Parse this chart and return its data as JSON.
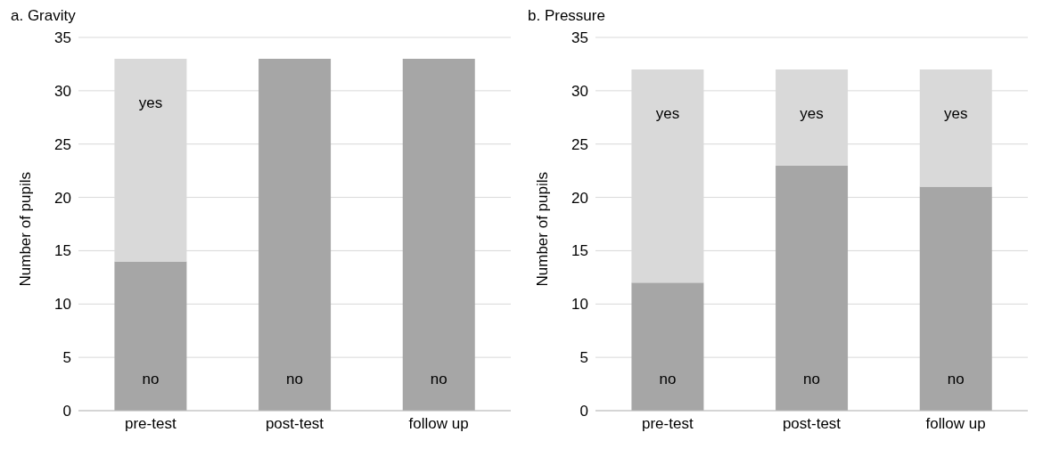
{
  "chart_data": [
    {
      "type": "bar",
      "title": "a. Gravity",
      "ylabel": "Number of pupils",
      "categories": [
        "pre-test",
        "post-test",
        "follow up"
      ],
      "stacked": true,
      "ylim": [
        0,
        35
      ],
      "yticks": [
        0,
        5,
        10,
        15,
        20,
        25,
        30,
        35
      ],
      "grid": "y",
      "series": [
        {
          "name": "no",
          "color": "#a6a6a6",
          "values": [
            14,
            33,
            33
          ]
        },
        {
          "name": "yes",
          "color": "#d9d9d9",
          "values": [
            19,
            0,
            0
          ]
        }
      ]
    },
    {
      "type": "bar",
      "title": "b. Pressure",
      "ylabel": "Number of pupils",
      "categories": [
        "pre-test",
        "post-test",
        "follow up"
      ],
      "stacked": true,
      "ylim": [
        0,
        35
      ],
      "yticks": [
        0,
        5,
        10,
        15,
        20,
        25,
        30,
        35
      ],
      "grid": "y",
      "series": [
        {
          "name": "no",
          "color": "#a6a6a6",
          "values": [
            12,
            23,
            21
          ]
        },
        {
          "name": "yes",
          "color": "#d9d9d9",
          "values": [
            20,
            9,
            11
          ]
        }
      ]
    }
  ]
}
